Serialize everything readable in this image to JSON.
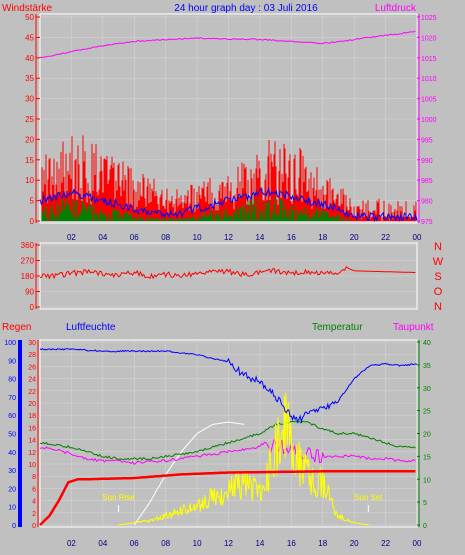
{
  "header": {
    "left_label": "Windstärke",
    "title": "24 hour graph day : 03 Juli 2016",
    "right_label": "Luftdruck"
  },
  "colors": {
    "background": "#c0c0c0",
    "wind_axis": "#ff0000",
    "pressure_axis": "#ff00ff",
    "direction_axis": "#ff0000",
    "rain": "#ff0000",
    "humidity": "#0000ff",
    "temperature": "#008000",
    "dewpoint": "#ff00ff",
    "solar": "#ffff00",
    "uv": "#ffffff",
    "title": "#0000ff"
  },
  "chart_data": [
    {
      "type": "line",
      "panel": "wind-pressure",
      "x_ticks": [
        "02",
        "04",
        "06",
        "08",
        "10",
        "12",
        "14",
        "16",
        "18",
        "20",
        "22",
        "00"
      ],
      "left_axis": {
        "label": "Windstärke",
        "ticks": [
          0,
          5,
          10,
          15,
          20,
          25,
          30,
          35,
          40,
          45,
          50
        ],
        "ylim": [
          0,
          50
        ]
      },
      "right_axis": {
        "label": "Luftdruck",
        "ticks": [
          975,
          980,
          985,
          990,
          995,
          1000,
          1005,
          1010,
          1015,
          1020,
          1025
        ],
        "ylim": [
          975,
          1025
        ]
      },
      "series": [
        {
          "name": "Luftdruck",
          "axis": "right",
          "x": [
            0,
            2,
            4,
            6,
            8,
            10,
            12,
            14,
            16,
            18,
            20,
            22,
            24
          ],
          "values": [
            1015,
            1016.5,
            1018,
            1019,
            1019.5,
            1019.8,
            1019.6,
            1019.5,
            1019,
            1018.5,
            1019.5,
            1020.5,
            1021.5
          ]
        },
        {
          "name": "gust",
          "axis": "left",
          "x": [
            0,
            1,
            2,
            3,
            4,
            5,
            6,
            7,
            8,
            9,
            10,
            11,
            12,
            13,
            14,
            15,
            16,
            17,
            18,
            19,
            20,
            21,
            22,
            23,
            24
          ],
          "values": [
            14,
            18,
            20,
            19,
            17,
            15,
            12,
            10,
            8,
            7,
            9,
            10,
            11,
            14,
            17,
            19,
            18,
            15,
            12,
            9,
            5,
            4,
            5,
            4,
            5
          ]
        },
        {
          "name": "average",
          "axis": "left",
          "x": [
            0,
            1,
            2,
            3,
            4,
            5,
            6,
            7,
            8,
            9,
            10,
            11,
            12,
            13,
            14,
            15,
            16,
            17,
            18,
            19,
            20,
            21,
            22,
            23,
            24
          ],
          "values": [
            5,
            6,
            7,
            6,
            5,
            4,
            3,
            2,
            2,
            2,
            3,
            4,
            5,
            6,
            7,
            7,
            6,
            5,
            4,
            3,
            1,
            1,
            1,
            1,
            1
          ]
        },
        {
          "name": "wind",
          "axis": "left",
          "x": [
            0,
            1,
            2,
            3,
            4,
            5,
            6,
            7,
            8,
            9,
            10,
            11,
            12,
            13,
            14,
            15,
            16,
            17,
            18,
            19,
            20,
            21,
            22,
            23,
            24
          ],
          "values": [
            2,
            3,
            4,
            3,
            2,
            2,
            1,
            1,
            0.5,
            0.5,
            1,
            2,
            2,
            3,
            4,
            4,
            3,
            2,
            2,
            1,
            0,
            0,
            0,
            0,
            0
          ]
        }
      ]
    },
    {
      "type": "line",
      "panel": "wind-direction",
      "left_axis": {
        "ticks": [
          0,
          90,
          180,
          270,
          360
        ],
        "ylim": [
          0,
          360
        ]
      },
      "right_axis": {
        "labels": [
          "N",
          "W",
          "S",
          "O",
          "N"
        ]
      },
      "series": [
        {
          "name": "Windrichtung",
          "x": [
            0,
            1,
            2,
            3,
            4,
            5,
            6,
            7,
            8,
            9,
            10,
            11,
            12,
            13,
            14,
            15,
            16,
            17,
            18,
            19,
            19.5,
            20,
            24
          ],
          "values": [
            180,
            182,
            195,
            205,
            190,
            185,
            200,
            178,
            190,
            180,
            195,
            210,
            205,
            190,
            200,
            210,
            195,
            205,
            200,
            190,
            230,
            210,
            200
          ]
        }
      ]
    },
    {
      "type": "line",
      "panel": "weather",
      "labels": {
        "rain": "Regen",
        "humidity": "Luftfeuchte",
        "temperature": "Temperatur",
        "dewpoint": "Taupunkt",
        "sunrise": "Sun Rise",
        "sunset": "Sun Set"
      },
      "rain_axis": {
        "ticks": [
          0,
          2,
          4,
          6,
          8,
          10,
          12,
          14,
          16,
          18,
          20,
          22,
          24,
          26,
          28,
          30
        ],
        "ylim": [
          0,
          30
        ]
      },
      "humidity_axis": {
        "ticks": [
          0,
          10,
          20,
          30,
          40,
          50,
          60,
          70,
          80,
          90,
          100
        ],
        "ylim": [
          0,
          100
        ]
      },
      "temperature_axis": {
        "ticks": [
          0,
          5,
          10,
          15,
          20,
          25,
          30,
          35,
          40
        ],
        "ylim": [
          0,
          40
        ]
      },
      "x_ticks": [
        "02",
        "04",
        "06",
        "08",
        "10",
        "12",
        "14",
        "16",
        "18",
        "20",
        "22",
        "00"
      ],
      "series": [
        {
          "name": "Regen",
          "x": [
            0,
            0.6,
            1.2,
            1.8,
            2.4,
            3,
            6,
            9,
            12,
            15,
            18,
            20,
            24
          ],
          "values": [
            0,
            1.5,
            4,
            7,
            7.5,
            7.5,
            7.7,
            8.3,
            8.6,
            8.7,
            8.8,
            8.8,
            8.8
          ]
        },
        {
          "name": "Luftfeuchte",
          "x": [
            0,
            2,
            4,
            6,
            8,
            9,
            10,
            11,
            12,
            12.5,
            13,
            14,
            15,
            15.5,
            16,
            16.5,
            17,
            18,
            19,
            20,
            21,
            22,
            23,
            24
          ],
          "values": [
            96,
            96,
            95,
            95,
            95,
            94,
            93,
            91,
            89,
            85,
            82,
            78,
            70,
            65,
            60,
            57,
            62,
            63,
            68,
            80,
            87,
            88,
            87,
            88
          ]
        },
        {
          "name": "Temperatur",
          "x": [
            0,
            1,
            2,
            3,
            4,
            5,
            6,
            7,
            8,
            9,
            10,
            11,
            12,
            13,
            14,
            15,
            16,
            17,
            18,
            19,
            20,
            21,
            22,
            23,
            24
          ],
          "values": [
            18,
            17.5,
            17,
            16,
            15,
            14.5,
            14.5,
            14.5,
            15,
            15.5,
            16,
            17,
            18,
            19,
            20,
            22,
            22.5,
            22.5,
            21,
            20,
            20,
            19,
            18,
            17,
            17
          ]
        },
        {
          "name": "Taupunkt",
          "x": [
            0,
            1,
            2,
            3,
            4,
            5,
            6,
            7,
            8,
            9,
            10,
            11,
            12,
            13,
            14,
            15,
            16,
            17,
            18,
            19,
            20,
            21,
            22,
            23,
            24
          ],
          "values": [
            17,
            16.5,
            15.5,
            14.5,
            14,
            14,
            13.5,
            14,
            14,
            14.5,
            15,
            15.5,
            16,
            16.5,
            17,
            17.5,
            16.5,
            15.5,
            15,
            15,
            15,
            14.5,
            14.5,
            14,
            14
          ]
        },
        {
          "name": "Solar",
          "x": [
            5,
            6,
            7,
            8,
            9,
            10,
            11,
            12,
            12.5,
            13,
            13.5,
            14,
            14.5,
            15,
            15.5,
            16,
            16.5,
            17,
            17.5,
            18,
            18.5,
            19,
            19.5,
            20,
            21
          ],
          "values": [
            0,
            0.5,
            1,
            2,
            3,
            4.5,
            6,
            7,
            9,
            9,
            8,
            8,
            11,
            16,
            22,
            18,
            14,
            12,
            8,
            10,
            5,
            2,
            1,
            0.5,
            0
          ]
        },
        {
          "name": "UV",
          "x": [
            6,
            7,
            8,
            9,
            10,
            11,
            12,
            13
          ],
          "values": [
            0,
            5,
            11,
            16,
            20,
            22,
            22.5,
            22
          ]
        }
      ]
    }
  ]
}
